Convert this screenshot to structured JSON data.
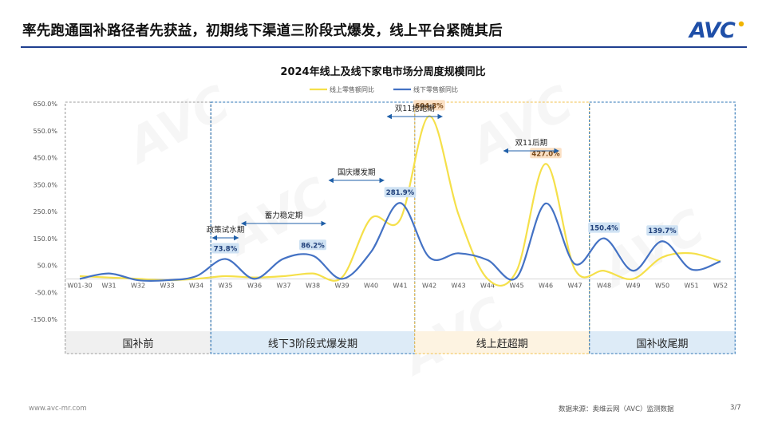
{
  "header": {
    "headline": "率先跑通国补路径者先获益，初期线下渠道三阶段式爆发，线上平台紧随其后",
    "logo_text": "AVC"
  },
  "footer": {
    "url": "www.avc-mr.com",
    "source": "数据来源：奥维云网（AVC）监测数据",
    "page": "3/7"
  },
  "watermark_text": "AVC",
  "chart_data": {
    "type": "line",
    "title": "2024年线上及线下家电市场分周度规模同比",
    "categories": [
      "W01-30",
      "W31",
      "W32",
      "W33",
      "W34",
      "W35",
      "W36",
      "W37",
      "W38",
      "W39",
      "W40",
      "W41",
      "W42",
      "W43",
      "W44",
      "W45",
      "W46",
      "W47",
      "W48",
      "W49",
      "W50",
      "W51",
      "W52"
    ],
    "ylim": [
      -150,
      650
    ],
    "yticks": [
      650,
      550,
      450,
      350,
      250,
      150,
      50,
      -50,
      -150
    ],
    "ytick_labels": [
      "650.0%",
      "550.0%",
      "450.0%",
      "350.0%",
      "250.0%",
      "150.0%",
      "50.0%",
      "-50.0%",
      "-150.0%"
    ],
    "legend_position": "top-center",
    "series": [
      {
        "name": "线上零售额同比",
        "color": "#f5e04a",
        "values": [
          10,
          5,
          0,
          -5,
          0,
          10,
          5,
          10,
          20,
          5,
          225,
          220,
          604.3,
          240,
          0,
          30,
          427,
          35,
          30,
          0,
          80,
          95,
          65
        ]
      },
      {
        "name": "线下零售额同比",
        "color": "#4472c4",
        "values": [
          0,
          20,
          -5,
          -5,
          10,
          73.8,
          0,
          75,
          86.2,
          0,
          100,
          281.9,
          80,
          95,
          70,
          5,
          280,
          55,
          150.4,
          30,
          139.7,
          35,
          65
        ]
      }
    ],
    "data_labels": [
      {
        "text": "73.8%",
        "series": 1,
        "index": 5
      },
      {
        "text": "86.2%",
        "series": 1,
        "index": 8
      },
      {
        "text": "281.9%",
        "series": 1,
        "index": 11
      },
      {
        "text": "604.3%",
        "series": 0,
        "index": 12
      },
      {
        "text": "427.0%",
        "series": 0,
        "index": 16
      },
      {
        "text": "150.4%",
        "series": 1,
        "index": 18
      },
      {
        "text": "139.7%",
        "series": 1,
        "index": 20
      }
    ],
    "periods": [
      {
        "label": "国补前",
        "start": 0,
        "end": 5,
        "color": "#9e9e9e",
        "fill": "#f0f0f0"
      },
      {
        "label": "线下3阶段式爆发期",
        "start": 5,
        "end": 12,
        "color": "#2e75b6",
        "fill": "#ddebf7"
      },
      {
        "label": "线上赶超期",
        "start": 12,
        "end": 18,
        "color": "#f2c14e",
        "fill": "#fdf3e1"
      },
      {
        "label": "国补收尾期",
        "start": 18,
        "end": 23,
        "color": "#2e75b6",
        "fill": "#ddebf7"
      }
    ],
    "annotations": [
      {
        "text": "政策试水期",
        "from": 5,
        "to": 6
      },
      {
        "text": "蓄力稳定期",
        "from": 6,
        "to": 9
      },
      {
        "text": "国庆爆发期",
        "from": 9,
        "to": 11
      },
      {
        "text": "双11抢跑期",
        "from": 11,
        "to": 13
      },
      {
        "text": "双11后期",
        "from": 15,
        "to": 17
      }
    ]
  }
}
